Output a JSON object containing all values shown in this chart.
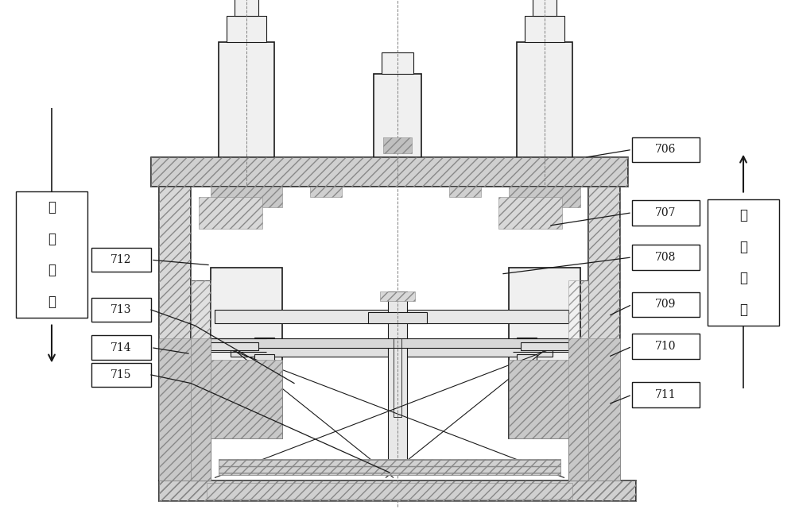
{
  "bg_color": "#ffffff",
  "lc": "#1a1a1a",
  "gray_fill": "#c8c8c8",
  "light_fill": "#e8e8e8",
  "white_fill": "#ffffff",
  "labels_right": [
    [
      "706",
      0.72
    ],
    [
      "707",
      0.585
    ],
    [
      "708",
      0.5
    ],
    [
      "709",
      0.415
    ],
    [
      "710",
      0.33
    ],
    [
      "711",
      0.24
    ]
  ],
  "labels_left": [
    [
      "712",
      0.505
    ],
    [
      "713",
      0.41
    ],
    [
      "714",
      0.335
    ],
    [
      "715",
      0.285
    ]
  ],
  "left_text": "断开方向",
  "right_text": "闭合方向",
  "font_size_label": 10,
  "font_size_dir": 12
}
